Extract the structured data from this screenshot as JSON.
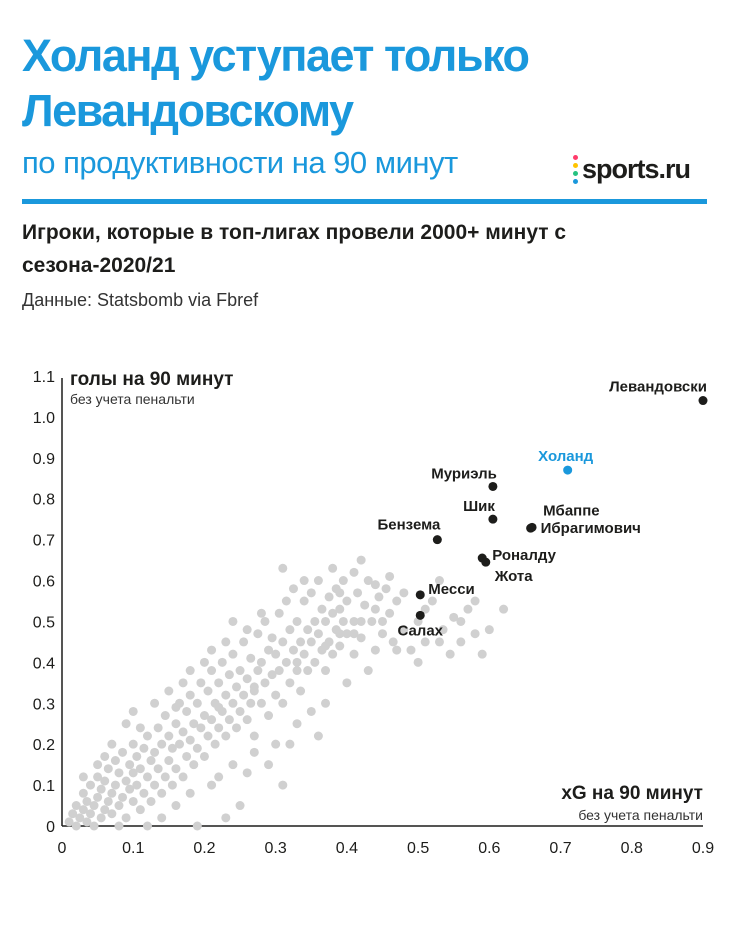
{
  "header": {
    "title": "Холанд уступает только Левандовскому",
    "subtitle": "по продуктивности на 90 минут",
    "logo_text": "sports.ru",
    "description": "Игроки, которые в топ-лигах провели 2000+ минут с сезона-2020/21",
    "source": "Данные: Statsbomb via Fbref"
  },
  "colors": {
    "accent": "#1a98dc",
    "text": "#1d1d1b",
    "background_points": "#d0d0d0",
    "highlight": "#1d1d1b",
    "logo_dots": [
      "#ff3b6b",
      "#ffc400",
      "#26c281",
      "#1a98dc"
    ]
  },
  "chart_data": {
    "type": "scatter",
    "xlabel": "xG на 90 минут",
    "xlabel_sub": "без учета пенальти",
    "ylabel": "голы на 90 минут",
    "ylabel_sub": "без учета пенальти",
    "xlim": [
      0,
      0.9
    ],
    "ylim": [
      0,
      1.1
    ],
    "xticks": [
      "0",
      "0.1",
      "0.2",
      "0.3",
      "0.4",
      "0.5",
      "0.6",
      "0.7",
      "0.8",
      "0.9"
    ],
    "yticks": [
      "0",
      "0.1",
      "0.2",
      "0.3",
      "0.4",
      "0.5",
      "0.6",
      "0.7",
      "0.8",
      "0.9",
      "1.0",
      "1.1"
    ],
    "labeled_points": [
      {
        "name": "Левандовски",
        "x": 0.9,
        "y": 1.04,
        "highlight": false
      },
      {
        "name": "Холанд",
        "x": 0.71,
        "y": 0.87,
        "highlight": true
      },
      {
        "name": "Муриэль",
        "x": 0.605,
        "y": 0.83,
        "highlight": false
      },
      {
        "name": "Шик",
        "x": 0.605,
        "y": 0.75,
        "highlight": false
      },
      {
        "name": "Мбаппе",
        "x": 0.66,
        "y": 0.73,
        "highlight": false
      },
      {
        "name": "Ибрагимович",
        "x": 0.658,
        "y": 0.728,
        "highlight": false
      },
      {
        "name": "Бензема",
        "x": 0.527,
        "y": 0.7,
        "highlight": false
      },
      {
        "name": "Роналду",
        "x": 0.59,
        "y": 0.655,
        "highlight": false
      },
      {
        "name": "Жота",
        "x": 0.595,
        "y": 0.645,
        "highlight": false
      },
      {
        "name": "Месси",
        "x": 0.503,
        "y": 0.565,
        "highlight": false
      },
      {
        "name": "Салах",
        "x": 0.503,
        "y": 0.515,
        "highlight": false
      }
    ],
    "background_points": [
      [
        0.01,
        0.01
      ],
      [
        0.015,
        0.03
      ],
      [
        0.02,
        0.0
      ],
      [
        0.02,
        0.05
      ],
      [
        0.025,
        0.02
      ],
      [
        0.03,
        0.04
      ],
      [
        0.03,
        0.08
      ],
      [
        0.035,
        0.01
      ],
      [
        0.035,
        0.06
      ],
      [
        0.04,
        0.03
      ],
      [
        0.04,
        0.1
      ],
      [
        0.045,
        0.05
      ],
      [
        0.045,
        0.0
      ],
      [
        0.05,
        0.07
      ],
      [
        0.05,
        0.12
      ],
      [
        0.055,
        0.02
      ],
      [
        0.055,
        0.09
      ],
      [
        0.06,
        0.04
      ],
      [
        0.06,
        0.11
      ],
      [
        0.065,
        0.06
      ],
      [
        0.065,
        0.14
      ],
      [
        0.07,
        0.03
      ],
      [
        0.07,
        0.08
      ],
      [
        0.075,
        0.1
      ],
      [
        0.075,
        0.16
      ],
      [
        0.08,
        0.05
      ],
      [
        0.08,
        0.13
      ],
      [
        0.085,
        0.07
      ],
      [
        0.085,
        0.18
      ],
      [
        0.09,
        0.02
      ],
      [
        0.09,
        0.11
      ],
      [
        0.095,
        0.15
      ],
      [
        0.095,
        0.09
      ],
      [
        0.1,
        0.06
      ],
      [
        0.1,
        0.13
      ],
      [
        0.1,
        0.2
      ],
      [
        0.105,
        0.1
      ],
      [
        0.105,
        0.17
      ],
      [
        0.11,
        0.04
      ],
      [
        0.11,
        0.14
      ],
      [
        0.115,
        0.08
      ],
      [
        0.115,
        0.19
      ],
      [
        0.12,
        0.12
      ],
      [
        0.12,
        0.22
      ],
      [
        0.125,
        0.16
      ],
      [
        0.125,
        0.06
      ],
      [
        0.13,
        0.1
      ],
      [
        0.13,
        0.18
      ],
      [
        0.135,
        0.14
      ],
      [
        0.135,
        0.24
      ],
      [
        0.14,
        0.08
      ],
      [
        0.14,
        0.2
      ],
      [
        0.145,
        0.12
      ],
      [
        0.145,
        0.27
      ],
      [
        0.15,
        0.16
      ],
      [
        0.15,
        0.22
      ],
      [
        0.155,
        0.1
      ],
      [
        0.155,
        0.19
      ],
      [
        0.16,
        0.14
      ],
      [
        0.16,
        0.25
      ],
      [
        0.165,
        0.2
      ],
      [
        0.165,
        0.3
      ],
      [
        0.17,
        0.12
      ],
      [
        0.17,
        0.23
      ],
      [
        0.175,
        0.17
      ],
      [
        0.175,
        0.28
      ],
      [
        0.18,
        0.21
      ],
      [
        0.18,
        0.32
      ],
      [
        0.185,
        0.15
      ],
      [
        0.185,
        0.25
      ],
      [
        0.19,
        0.19
      ],
      [
        0.19,
        0.3
      ],
      [
        0.195,
        0.24
      ],
      [
        0.195,
        0.35
      ],
      [
        0.2,
        0.17
      ],
      [
        0.2,
        0.27
      ],
      [
        0.205,
        0.22
      ],
      [
        0.205,
        0.33
      ],
      [
        0.21,
        0.26
      ],
      [
        0.21,
        0.38
      ],
      [
        0.215,
        0.2
      ],
      [
        0.215,
        0.3
      ],
      [
        0.22,
        0.24
      ],
      [
        0.22,
        0.35
      ],
      [
        0.225,
        0.28
      ],
      [
        0.225,
        0.4
      ],
      [
        0.23,
        0.22
      ],
      [
        0.23,
        0.32
      ],
      [
        0.235,
        0.26
      ],
      [
        0.235,
        0.37
      ],
      [
        0.24,
        0.3
      ],
      [
        0.24,
        0.42
      ],
      [
        0.245,
        0.24
      ],
      [
        0.245,
        0.34
      ],
      [
        0.25,
        0.28
      ],
      [
        0.25,
        0.38
      ],
      [
        0.255,
        0.32
      ],
      [
        0.255,
        0.45
      ],
      [
        0.26,
        0.26
      ],
      [
        0.26,
        0.36
      ],
      [
        0.265,
        0.3
      ],
      [
        0.265,
        0.41
      ],
      [
        0.27,
        0.34
      ],
      [
        0.27,
        0.22
      ],
      [
        0.275,
        0.38
      ],
      [
        0.275,
        0.47
      ],
      [
        0.28,
        0.3
      ],
      [
        0.28,
        0.4
      ],
      [
        0.285,
        0.35
      ],
      [
        0.285,
        0.5
      ],
      [
        0.29,
        0.43
      ],
      [
        0.29,
        0.27
      ],
      [
        0.295,
        0.37
      ],
      [
        0.295,
        0.46
      ],
      [
        0.3,
        0.32
      ],
      [
        0.3,
        0.42
      ],
      [
        0.305,
        0.38
      ],
      [
        0.305,
        0.52
      ],
      [
        0.31,
        0.45
      ],
      [
        0.31,
        0.3
      ],
      [
        0.315,
        0.4
      ],
      [
        0.315,
        0.55
      ],
      [
        0.32,
        0.35
      ],
      [
        0.32,
        0.48
      ],
      [
        0.325,
        0.43
      ],
      [
        0.325,
        0.58
      ],
      [
        0.33,
        0.38
      ],
      [
        0.33,
        0.5
      ],
      [
        0.335,
        0.45
      ],
      [
        0.335,
        0.33
      ],
      [
        0.34,
        0.42
      ],
      [
        0.34,
        0.55
      ],
      [
        0.345,
        0.48
      ],
      [
        0.345,
        0.38
      ],
      [
        0.35,
        0.45
      ],
      [
        0.35,
        0.57
      ],
      [
        0.355,
        0.5
      ],
      [
        0.355,
        0.4
      ],
      [
        0.36,
        0.47
      ],
      [
        0.36,
        0.6
      ],
      [
        0.365,
        0.43
      ],
      [
        0.365,
        0.53
      ],
      [
        0.37,
        0.5
      ],
      [
        0.37,
        0.38
      ],
      [
        0.375,
        0.45
      ],
      [
        0.375,
        0.56
      ],
      [
        0.38,
        0.52
      ],
      [
        0.38,
        0.42
      ],
      [
        0.385,
        0.48
      ],
      [
        0.385,
        0.58
      ],
      [
        0.39,
        0.44
      ],
      [
        0.39,
        0.53
      ],
      [
        0.395,
        0.5
      ],
      [
        0.395,
        0.6
      ],
      [
        0.4,
        0.47
      ],
      [
        0.4,
        0.55
      ],
      [
        0.41,
        0.5
      ],
      [
        0.41,
        0.42
      ],
      [
        0.415,
        0.57
      ],
      [
        0.42,
        0.46
      ],
      [
        0.425,
        0.54
      ],
      [
        0.43,
        0.6
      ],
      [
        0.435,
        0.5
      ],
      [
        0.44,
        0.43
      ],
      [
        0.445,
        0.56
      ],
      [
        0.45,
        0.47
      ],
      [
        0.455,
        0.58
      ],
      [
        0.46,
        0.52
      ],
      [
        0.465,
        0.45
      ],
      [
        0.47,
        0.55
      ],
      [
        0.48,
        0.48
      ],
      [
        0.49,
        0.43
      ],
      [
        0.5,
        0.5
      ],
      [
        0.51,
        0.45
      ],
      [
        0.52,
        0.55
      ],
      [
        0.535,
        0.48
      ],
      [
        0.545,
        0.42
      ],
      [
        0.55,
        0.51
      ],
      [
        0.56,
        0.45
      ],
      [
        0.57,
        0.53
      ],
      [
        0.58,
        0.47
      ],
      [
        0.59,
        0.42
      ],
      [
        0.6,
        0.48
      ],
      [
        0.62,
        0.53
      ],
      [
        0.31,
        0.63
      ],
      [
        0.41,
        0.62
      ],
      [
        0.46,
        0.61
      ],
      [
        0.53,
        0.6
      ],
      [
        0.39,
        0.57
      ],
      [
        0.44,
        0.59
      ],
      [
        0.08,
        0.0
      ],
      [
        0.12,
        0.0
      ],
      [
        0.16,
        0.05
      ],
      [
        0.18,
        0.08
      ],
      [
        0.21,
        0.1
      ],
      [
        0.24,
        0.15
      ],
      [
        0.27,
        0.18
      ],
      [
        0.3,
        0.2
      ],
      [
        0.33,
        0.25
      ],
      [
        0.22,
        0.12
      ],
      [
        0.26,
        0.13
      ],
      [
        0.29,
        0.15
      ],
      [
        0.32,
        0.2
      ],
      [
        0.35,
        0.28
      ],
      [
        0.37,
        0.3
      ],
      [
        0.4,
        0.35
      ],
      [
        0.43,
        0.38
      ],
      [
        0.36,
        0.22
      ],
      [
        0.31,
        0.1
      ],
      [
        0.25,
        0.05
      ],
      [
        0.19,
        0.0
      ],
      [
        0.23,
        0.02
      ],
      [
        0.14,
        0.02
      ],
      [
        0.17,
        0.35
      ],
      [
        0.13,
        0.3
      ],
      [
        0.1,
        0.28
      ],
      [
        0.07,
        0.2
      ],
      [
        0.05,
        0.15
      ],
      [
        0.09,
        0.25
      ],
      [
        0.15,
        0.33
      ],
      [
        0.2,
        0.4
      ],
      [
        0.23,
        0.45
      ],
      [
        0.26,
        0.48
      ],
      [
        0.28,
        0.52
      ],
      [
        0.24,
        0.5
      ],
      [
        0.21,
        0.43
      ],
      [
        0.18,
        0.38
      ],
      [
        0.34,
        0.6
      ],
      [
        0.38,
        0.63
      ],
      [
        0.42,
        0.65
      ],
      [
        0.03,
        0.12
      ],
      [
        0.06,
        0.17
      ],
      [
        0.11,
        0.24
      ],
      [
        0.16,
        0.29
      ],
      [
        0.22,
        0.29
      ],
      [
        0.27,
        0.33
      ],
      [
        0.33,
        0.4
      ],
      [
        0.37,
        0.44
      ],
      [
        0.41,
        0.47
      ],
      [
        0.45,
        0.5
      ],
      [
        0.47,
        0.43
      ],
      [
        0.5,
        0.4
      ],
      [
        0.53,
        0.45
      ],
      [
        0.56,
        0.5
      ],
      [
        0.58,
        0.55
      ],
      [
        0.51,
        0.53
      ],
      [
        0.48,
        0.57
      ],
      [
        0.44,
        0.53
      ],
      [
        0.42,
        0.5
      ],
      [
        0.39,
        0.47
      ]
    ]
  }
}
